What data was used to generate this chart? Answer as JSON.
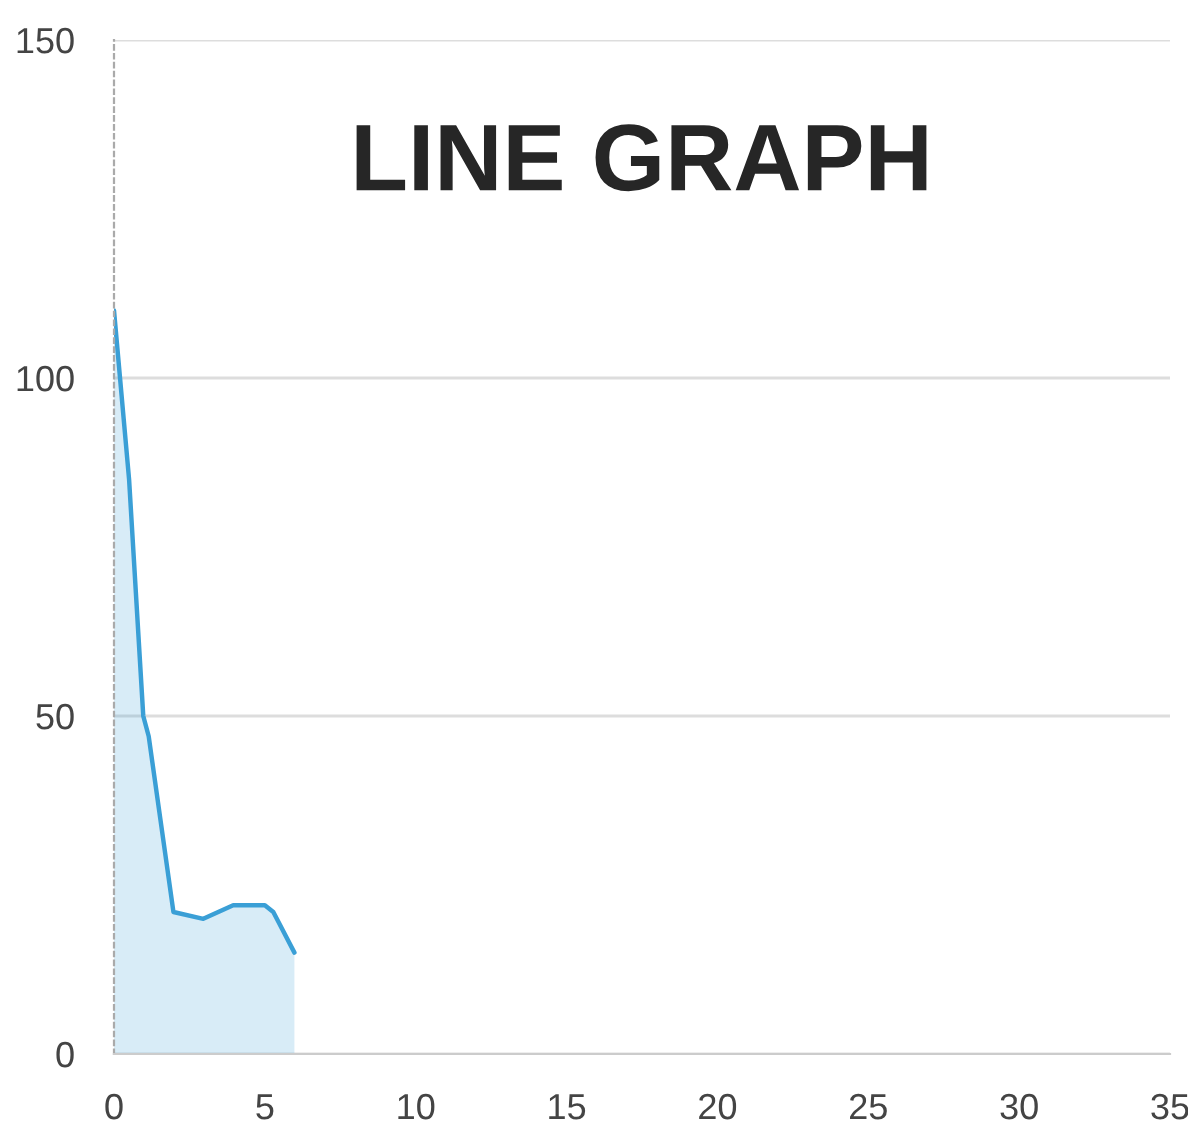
{
  "chart_data": {
    "type": "area",
    "title": "LINE GRAPH",
    "series": [
      {
        "color": "#3a9fd6",
        "x": [
          0,
          0.5,
          0.97,
          1.15,
          1.97,
          2.96,
          3.95,
          5.0,
          5.28,
          5.98
        ],
        "values": [
          110,
          85,
          50,
          47,
          21,
          20,
          22,
          22,
          21,
          15
        ]
      }
    ],
    "xlim": [
      0,
      35
    ],
    "xticks": [
      0,
      5,
      10,
      15,
      20,
      25,
      30,
      35
    ],
    "ylim": [
      0,
      150
    ],
    "yticks": [
      0,
      50,
      100,
      150
    ],
    "grid": "y",
    "legend": false
  }
}
